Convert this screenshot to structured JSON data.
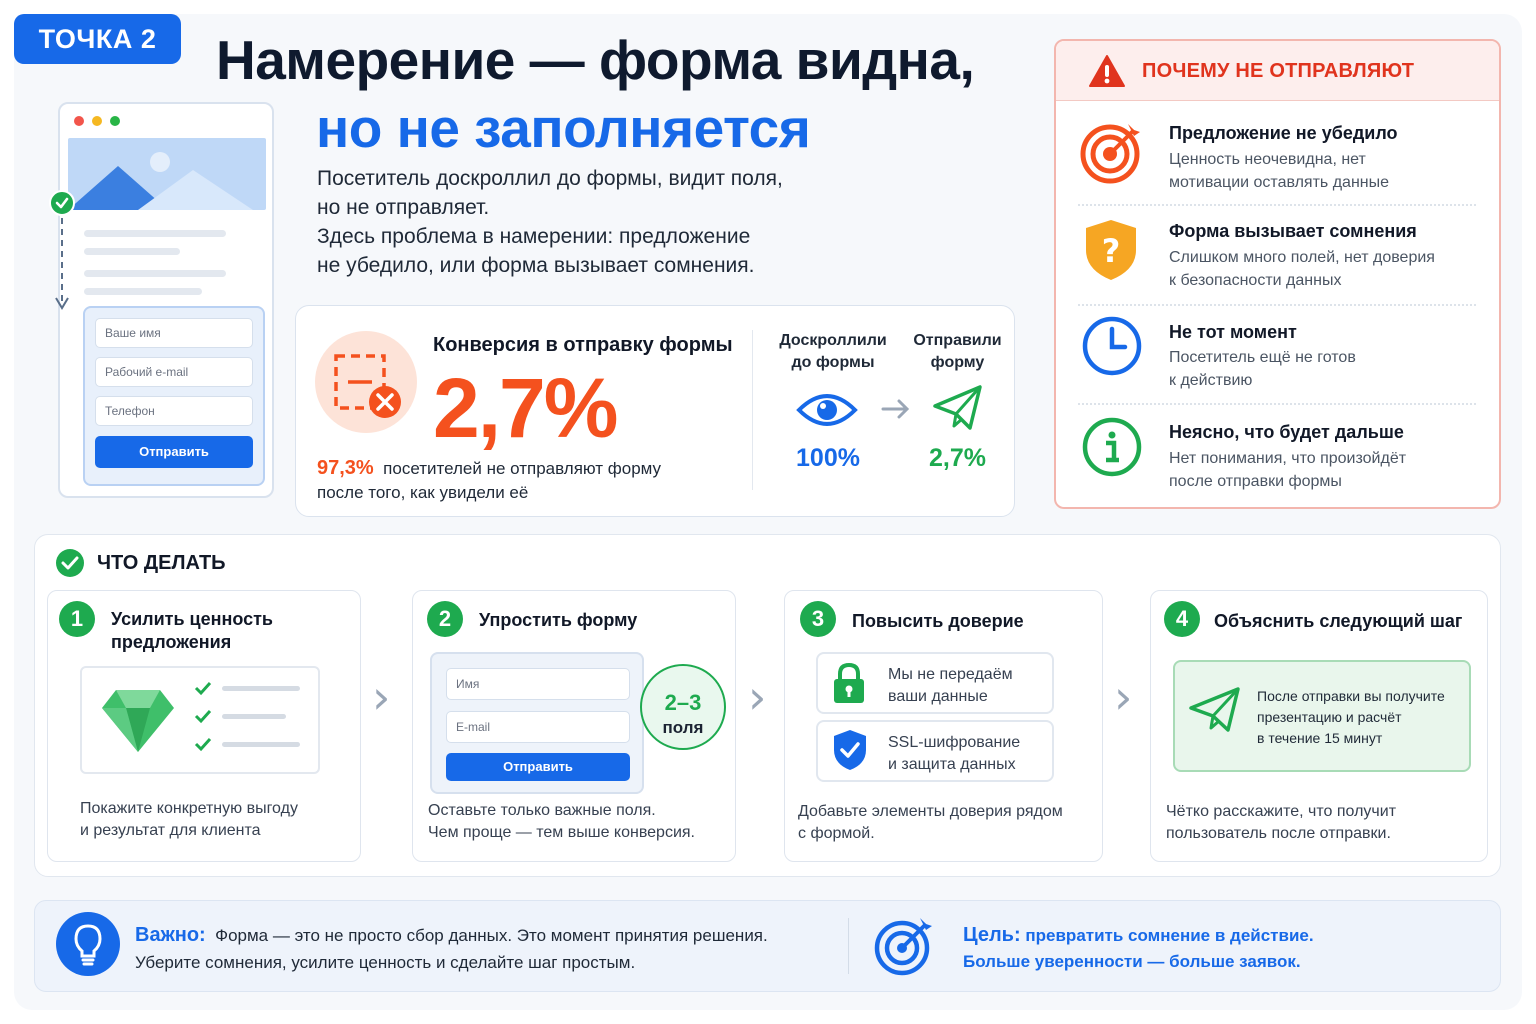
{
  "badge": "ТОЧКА 2",
  "title_line1": "Намерение — форма видна,",
  "title_line2": "но не заполняется",
  "intro": [
    "Посетитель доскроллил до формы, видит поля,",
    "но не отправляет.",
    "Здесь проблема в намерении: предложение",
    "не убедило, или форма вызывает сомнения."
  ],
  "mockup": {
    "fields": [
      "Ваше имя",
      "Рабочий e-mail",
      "Телефон"
    ],
    "submit": "Отправить"
  },
  "conversion": {
    "title": "Конверсия в отправку формы",
    "value": "2,7%",
    "sub_pct": "97,3%",
    "sub_text_1": "посетителей не отправляют форму",
    "sub_text_2": "после того, как увидели её",
    "funnel": {
      "col1_label_1": "Доскроллили",
      "col1_label_2": "до формы",
      "col1_value": "100%",
      "col2_label_1": "Отправили",
      "col2_label_2": "форму",
      "col2_value": "2,7%"
    }
  },
  "why": {
    "title": "ПОЧЕМУ НЕ ОТПРАВЛЯЮТ",
    "reasons": [
      {
        "title": "Предложение не убедило",
        "d1": "Ценность неочевидна, нет",
        "d2": "мотивации оставлять данные",
        "icon": "target-icon"
      },
      {
        "title": "Форма вызывает сомнения",
        "d1": "Слишком много полей, нет доверия",
        "d2": "к безопасности данных",
        "icon": "shield-question-icon"
      },
      {
        "title": "Не тот момент",
        "d1": "Посетитель ещё не готов",
        "d2": "к действию",
        "icon": "clock-icon"
      },
      {
        "title": "Неясно, что будет дальше",
        "d1": "Нет понимания, что произойдёт",
        "d2": "после отправки формы",
        "icon": "info-icon"
      }
    ]
  },
  "todo": {
    "title": "ЧТО ДЕЛАТЬ",
    "steps": [
      {
        "num": "1",
        "t1": "Усилить ценность",
        "t2": "предложения",
        "d1": "Покажите конкретную выгоду",
        "d2": "и результат для клиента"
      },
      {
        "num": "2",
        "t1": "Упростить форму",
        "d1": "Оставьте только важные поля.",
        "d2": "Чем проще — тем выше конверсия.",
        "fields": [
          "Имя",
          "E-mail"
        ],
        "submit": "Отправить",
        "bubble_1": "2–3",
        "bubble_2": "поля"
      },
      {
        "num": "3",
        "t1": "Повысить доверие",
        "d1": "Добавьте элементы доверия рядом",
        "d2": "с формой.",
        "trust_1a": "Мы не передаём",
        "trust_1b": "ваши данные",
        "trust_2a": "SSL-шифрование",
        "trust_2b": "и защита данных"
      },
      {
        "num": "4",
        "t1": "Объяснить следующий шаг",
        "d1": "Чётко расскажите, что получит",
        "d2": "пользователь после отправки.",
        "note_1": "После отправки вы получите",
        "note_2": "презентацию и расчёт",
        "note_3": "в течение 15 минут"
      }
    ]
  },
  "important": {
    "label": "Важно:",
    "text_1": "Форма — это не просто сбор данных. Это момент принятия решения.",
    "text_2": "Уберите сомнения, усилите ценность и сделайте шаг простым."
  },
  "goal": {
    "label": "Цель:",
    "text_1": "превратить сомнение в действие.",
    "text_2": "Больше уверенности — больше заявок."
  },
  "colors": {
    "primary": "#1769e8",
    "accent": "#f4511e",
    "success": "#1eaa4f",
    "warning": "#f6a623",
    "danger": "#e0341e"
  }
}
